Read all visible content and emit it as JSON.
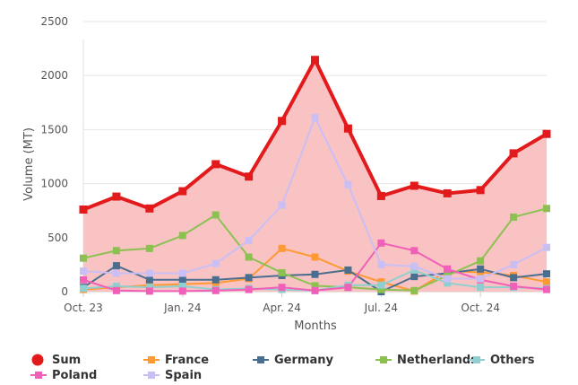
{
  "chart_data": {
    "type": "line",
    "title": "",
    "xlabel": "Months",
    "ylabel": "Volume (MT)",
    "ylim": [
      0,
      2500
    ],
    "yticks": [
      "0",
      "500",
      "1000",
      "1500",
      "2000",
      "2500"
    ],
    "xtick_labels": [
      "Oct. 23",
      "Jan. 24",
      "Apr. 24",
      "Jul. 24",
      "Oct. 24"
    ],
    "categories": [
      "2023-10",
      "2023-11",
      "2023-12",
      "2024-01",
      "2024-02",
      "2024-03",
      "2024-04",
      "2024-05",
      "2024-06",
      "2024-07",
      "2024-08",
      "2024-09",
      "2024-10",
      "2024-11",
      "2024-12"
    ],
    "legend_position": "bottom",
    "series": [
      {
        "name": "Sum",
        "color": "#e31a1c",
        "area": true,
        "values": [
          760,
          880,
          770,
          930,
          1180,
          1065,
          1580,
          2145,
          1510,
          885,
          980,
          910,
          940,
          1280,
          1460
        ]
      },
      {
        "name": "France",
        "color": "#ff9933",
        "values": [
          20,
          40,
          60,
          70,
          80,
          120,
          400,
          320,
          190,
          90,
          5,
          190,
          180,
          150,
          90
        ]
      },
      {
        "name": "Germany",
        "color": "#4a6e8f",
        "values": [
          40,
          240,
          110,
          110,
          110,
          130,
          150,
          160,
          200,
          0,
          140,
          170,
          210,
          130,
          165
        ]
      },
      {
        "name": "Netherlands",
        "color": "#8cc152",
        "values": [
          310,
          380,
          400,
          520,
          710,
          320,
          175,
          55,
          40,
          20,
          10,
          150,
          285,
          690,
          770
        ]
      },
      {
        "name": "Others",
        "color": "#8fcfcf",
        "values": [
          30,
          50,
          40,
          50,
          20,
          30,
          20,
          10,
          60,
          60,
          200,
          80,
          40,
          40,
          30
        ]
      },
      {
        "name": "Poland",
        "color": "#f060b8",
        "values": [
          110,
          10,
          5,
          5,
          10,
          20,
          40,
          10,
          40,
          450,
          380,
          210,
          110,
          50,
          20
        ]
      },
      {
        "name": "Spain",
        "color": "#c9bff5",
        "values": [
          190,
          170,
          170,
          170,
          260,
          475,
          800,
          1610,
          990,
          250,
          235,
          120,
          120,
          250,
          410
        ]
      }
    ]
  }
}
